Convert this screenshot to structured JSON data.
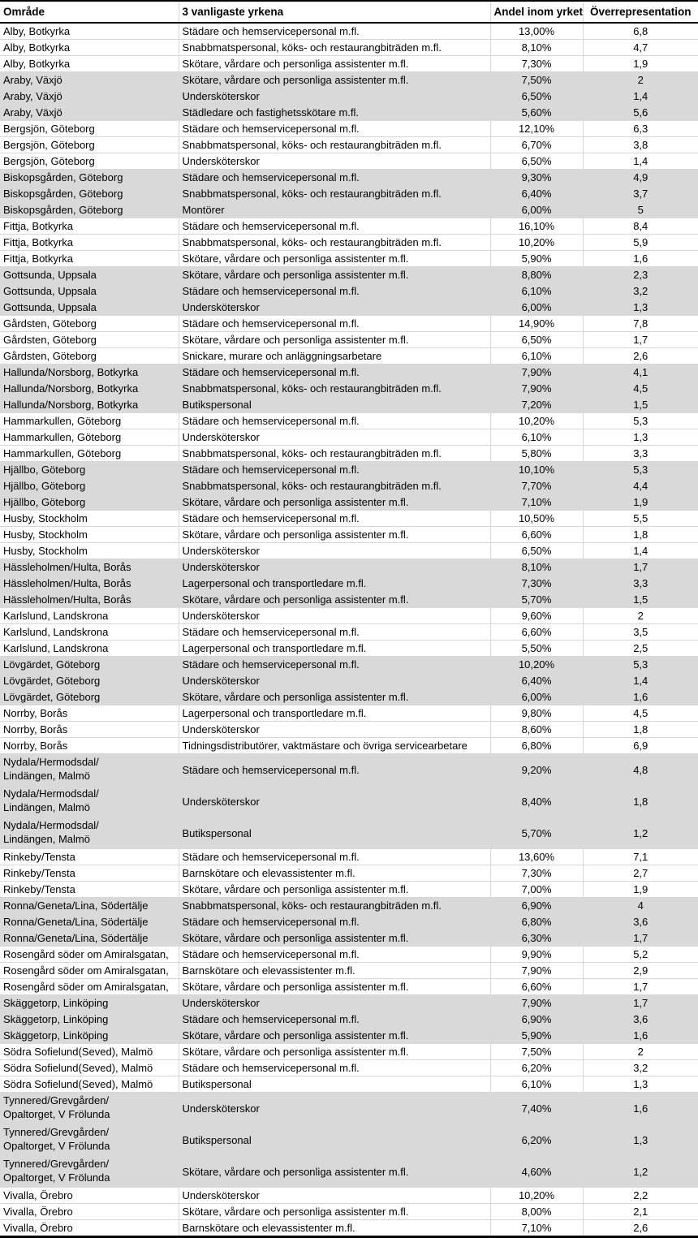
{
  "colors": {
    "row_shade": "#d9d9d9",
    "gridline": "#d6d6d6",
    "outer_border": "#000000",
    "text": "#000000",
    "background": "#ffffff"
  },
  "table": {
    "columns": [
      {
        "key": "area",
        "label": "Område"
      },
      {
        "key": "occupation",
        "label": "3 vanligaste yrkena"
      },
      {
        "key": "share",
        "label": "Andel inom yrket"
      },
      {
        "key": "over",
        "label": "Överrepresentation"
      }
    ],
    "rows": [
      {
        "area": "Alby, Botkyrka",
        "occupation": "Städare och hemservicepersonal m.fl.",
        "share": "13,00%",
        "over": "6,8",
        "shaded": false,
        "tall": false
      },
      {
        "area": "Alby, Botkyrka",
        "occupation": "Snabbmatspersonal, köks- och restaurangbiträden m.fl.",
        "share": "8,10%",
        "over": "4,7",
        "shaded": false,
        "tall": false
      },
      {
        "area": "Alby, Botkyrka",
        "occupation": "Skötare, vårdare och personliga assistenter m.fl.",
        "share": "7,30%",
        "over": "1,9",
        "shaded": false,
        "tall": false
      },
      {
        "area": "Araby, Växjö",
        "occupation": "Skötare, vårdare och personliga assistenter m.fl.",
        "share": "7,50%",
        "over": "2",
        "shaded": true,
        "tall": false
      },
      {
        "area": "Araby, Växjö",
        "occupation": "Undersköterskor",
        "share": "6,50%",
        "over": "1,4",
        "shaded": true,
        "tall": false
      },
      {
        "area": "Araby, Växjö",
        "occupation": "Städledare och fastighetsskötare m.fl.",
        "share": "5,60%",
        "over": "5,6",
        "shaded": true,
        "tall": false
      },
      {
        "area": "Bergsjön, Göteborg",
        "occupation": "Städare och hemservicepersonal m.fl.",
        "share": "12,10%",
        "over": "6,3",
        "shaded": false,
        "tall": false
      },
      {
        "area": "Bergsjön, Göteborg",
        "occupation": "Snabbmatspersonal, köks- och restaurangbiträden m.fl.",
        "share": "6,70%",
        "over": "3,8",
        "shaded": false,
        "tall": false
      },
      {
        "area": "Bergsjön, Göteborg",
        "occupation": "Undersköterskor",
        "share": "6,50%",
        "over": "1,4",
        "shaded": false,
        "tall": false
      },
      {
        "area": "Biskopsgården, Göteborg",
        "occupation": "Städare och hemservicepersonal m.fl.",
        "share": "9,30%",
        "over": "4,9",
        "shaded": true,
        "tall": false
      },
      {
        "area": "Biskopsgården, Göteborg",
        "occupation": "Snabbmatspersonal, köks- och restaurangbiträden m.fl.",
        "share": "6,40%",
        "over": "3,7",
        "shaded": true,
        "tall": false
      },
      {
        "area": "Biskopsgården, Göteborg",
        "occupation": "Montörer",
        "share": "6,00%",
        "over": "5",
        "shaded": true,
        "tall": false
      },
      {
        "area": "Fittja, Botkyrka",
        "occupation": "Städare och hemservicepersonal m.fl.",
        "share": "16,10%",
        "over": "8,4",
        "shaded": false,
        "tall": false
      },
      {
        "area": "Fittja, Botkyrka",
        "occupation": "Snabbmatspersonal, köks- och restaurangbiträden m.fl.",
        "share": "10,20%",
        "over": "5,9",
        "shaded": false,
        "tall": false
      },
      {
        "area": "Fittja, Botkyrka",
        "occupation": "Skötare, vårdare och personliga assistenter m.fl.",
        "share": "5,90%",
        "over": "1,6",
        "shaded": false,
        "tall": false
      },
      {
        "area": "Gottsunda, Uppsala",
        "occupation": "Skötare, vårdare och personliga assistenter m.fl.",
        "share": "8,80%",
        "over": "2,3",
        "shaded": true,
        "tall": false
      },
      {
        "area": "Gottsunda, Uppsala",
        "occupation": "Städare och hemservicepersonal m.fl.",
        "share": "6,10%",
        "over": "3,2",
        "shaded": true,
        "tall": false
      },
      {
        "area": "Gottsunda, Uppsala",
        "occupation": "Undersköterskor",
        "share": "6,00%",
        "over": "1,3",
        "shaded": true,
        "tall": false
      },
      {
        "area": "Gårdsten, Göteborg",
        "occupation": "Städare och hemservicepersonal m.fl.",
        "share": "14,90%",
        "over": "7,8",
        "shaded": false,
        "tall": false
      },
      {
        "area": "Gårdsten, Göteborg",
        "occupation": "Skötare, vårdare och personliga assistenter m.fl.",
        "share": "6,50%",
        "over": "1,7",
        "shaded": false,
        "tall": false
      },
      {
        "area": "Gårdsten, Göteborg",
        "occupation": "Snickare, murare och anläggningsarbetare",
        "share": "6,10%",
        "over": "2,6",
        "shaded": false,
        "tall": false
      },
      {
        "area": "Hallunda/Norsborg, Botkyrka",
        "occupation": "Städare och hemservicepersonal m.fl.",
        "share": "7,90%",
        "over": "4,1",
        "shaded": true,
        "tall": false
      },
      {
        "area": "Hallunda/Norsborg, Botkyrka",
        "occupation": "Snabbmatspersonal, köks- och restaurangbiträden m.fl.",
        "share": "7,90%",
        "over": "4,5",
        "shaded": true,
        "tall": false
      },
      {
        "area": "Hallunda/Norsborg, Botkyrka",
        "occupation": "Butikspersonal",
        "share": "7,20%",
        "over": "1,5",
        "shaded": true,
        "tall": false
      },
      {
        "area": "Hammarkullen, Göteborg",
        "occupation": "Städare och hemservicepersonal m.fl.",
        "share": "10,20%",
        "over": "5,3",
        "shaded": false,
        "tall": false
      },
      {
        "area": "Hammarkullen, Göteborg",
        "occupation": "Undersköterskor",
        "share": "6,10%",
        "over": "1,3",
        "shaded": false,
        "tall": false
      },
      {
        "area": "Hammarkullen, Göteborg",
        "occupation": "Snabbmatspersonal, köks- och restaurangbiträden m.fl.",
        "share": "5,80%",
        "over": "3,3",
        "shaded": false,
        "tall": false
      },
      {
        "area": "Hjällbo, Göteborg",
        "occupation": "Städare och hemservicepersonal m.fl.",
        "share": "10,10%",
        "over": "5,3",
        "shaded": true,
        "tall": false
      },
      {
        "area": "Hjällbo, Göteborg",
        "occupation": "Snabbmatspersonal, köks- och restaurangbiträden m.fl.",
        "share": "7,70%",
        "over": "4,4",
        "shaded": true,
        "tall": false
      },
      {
        "area": "Hjällbo, Göteborg",
        "occupation": "Skötare, vårdare och personliga assistenter m.fl.",
        "share": "7,10%",
        "over": "1,9",
        "shaded": true,
        "tall": false
      },
      {
        "area": "Husby, Stockholm",
        "occupation": "Städare och hemservicepersonal m.fl.",
        "share": "10,50%",
        "over": "5,5",
        "shaded": false,
        "tall": false
      },
      {
        "area": "Husby, Stockholm",
        "occupation": "Skötare, vårdare och personliga assistenter m.fl.",
        "share": "6,60%",
        "over": "1,8",
        "shaded": false,
        "tall": false
      },
      {
        "area": "Husby, Stockholm",
        "occupation": "Undersköterskor",
        "share": "6,50%",
        "over": "1,4",
        "shaded": false,
        "tall": false
      },
      {
        "area": "Hässleholmen/Hulta, Borås",
        "occupation": "Undersköterskor",
        "share": "8,10%",
        "over": "1,7",
        "shaded": true,
        "tall": false
      },
      {
        "area": "Hässleholmen/Hulta, Borås",
        "occupation": "Lagerpersonal och transportledare m.fl.",
        "share": "7,30%",
        "over": "3,3",
        "shaded": true,
        "tall": false
      },
      {
        "area": "Hässleholmen/Hulta, Borås",
        "occupation": "Skötare, vårdare och personliga assistenter m.fl.",
        "share": "5,70%",
        "over": "1,5",
        "shaded": true,
        "tall": false
      },
      {
        "area": "Karlslund, Landskrona",
        "occupation": "Undersköterskor",
        "share": "9,60%",
        "over": "2",
        "shaded": false,
        "tall": false
      },
      {
        "area": "Karlslund, Landskrona",
        "occupation": "Städare och hemservicepersonal m.fl.",
        "share": "6,60%",
        "over": "3,5",
        "shaded": false,
        "tall": false
      },
      {
        "area": "Karlslund, Landskrona",
        "occupation": "Lagerpersonal och transportledare m.fl.",
        "share": "5,50%",
        "over": "2,5",
        "shaded": false,
        "tall": false
      },
      {
        "area": "Lövgärdet, Göteborg",
        "occupation": "Städare och hemservicepersonal m.fl.",
        "share": "10,20%",
        "over": "5,3",
        "shaded": true,
        "tall": false
      },
      {
        "area": "Lövgärdet, Göteborg",
        "occupation": "Undersköterskor",
        "share": "6,40%",
        "over": "1,4",
        "shaded": true,
        "tall": false
      },
      {
        "area": "Lövgärdet, Göteborg",
        "occupation": "Skötare, vårdare och personliga assistenter m.fl.",
        "share": "6,00%",
        "over": "1,6",
        "shaded": true,
        "tall": false
      },
      {
        "area": "Norrby, Borås",
        "occupation": "Lagerpersonal och transportledare m.fl.",
        "share": "9,80%",
        "over": "4,5",
        "shaded": false,
        "tall": false
      },
      {
        "area": "Norrby, Borås",
        "occupation": "Undersköterskor",
        "share": "8,60%",
        "over": "1,8",
        "shaded": false,
        "tall": false
      },
      {
        "area": "Norrby, Borås",
        "occupation": "Tidningsdistributörer, vaktmästare och övriga servicearbetare",
        "share": "6,80%",
        "over": "6,9",
        "shaded": false,
        "tall": false
      },
      {
        "area": "Nydala/Hermodsdal/\nLindängen, Malmö",
        "occupation": "Städare och hemservicepersonal m.fl.",
        "share": "9,20%",
        "over": "4,8",
        "shaded": true,
        "tall": true
      },
      {
        "area": "Nydala/Hermodsdal/\nLindängen, Malmö",
        "occupation": "Undersköterskor",
        "share": "8,40%",
        "over": "1,8",
        "shaded": true,
        "tall": true
      },
      {
        "area": "Nydala/Hermodsdal/\nLindängen, Malmö",
        "occupation": "Butikspersonal",
        "share": "5,70%",
        "over": "1,2",
        "shaded": true,
        "tall": true
      },
      {
        "area": "Rinkeby/Tensta",
        "occupation": "Städare och hemservicepersonal m.fl.",
        "share": "13,60%",
        "over": "7,1",
        "shaded": false,
        "tall": false
      },
      {
        "area": "Rinkeby/Tensta",
        "occupation": "Barnskötare och elevassistenter m.fl.",
        "share": "7,30%",
        "over": "2,7",
        "shaded": false,
        "tall": false
      },
      {
        "area": "Rinkeby/Tensta",
        "occupation": "Skötare, vårdare och personliga assistenter m.fl.",
        "share": "7,00%",
        "over": "1,9",
        "shaded": false,
        "tall": false
      },
      {
        "area": "Ronna/Geneta/Lina, Södertälje",
        "occupation": "Snabbmatspersonal, köks- och restaurangbiträden m.fl.",
        "share": "6,90%",
        "over": "4",
        "shaded": true,
        "tall": false
      },
      {
        "area": "Ronna/Geneta/Lina, Södertälje",
        "occupation": "Städare och hemservicepersonal m.fl.",
        "share": "6,80%",
        "over": "3,6",
        "shaded": true,
        "tall": false
      },
      {
        "area": "Ronna/Geneta/Lina, Södertälje",
        "occupation": "Skötare, vårdare och personliga assistenter m.fl.",
        "share": "6,30%",
        "over": "1,7",
        "shaded": true,
        "tall": false
      },
      {
        "area": "Rosengård söder om Amiralsgatan,",
        "occupation": "Städare och hemservicepersonal m.fl.",
        "share": "9,90%",
        "over": "5,2",
        "shaded": false,
        "tall": false
      },
      {
        "area": "Rosengård söder om Amiralsgatan,",
        "occupation": "Barnskötare och elevassistenter m.fl.",
        "share": "7,90%",
        "over": "2,9",
        "shaded": false,
        "tall": false
      },
      {
        "area": "Rosengård söder om Amiralsgatan,",
        "occupation": "Skötare, vårdare och personliga assistenter m.fl.",
        "share": "6,60%",
        "over": "1,7",
        "shaded": false,
        "tall": false
      },
      {
        "area": "Skäggetorp, Linköping",
        "occupation": "Undersköterskor",
        "share": "7,90%",
        "over": "1,7",
        "shaded": true,
        "tall": false
      },
      {
        "area": "Skäggetorp, Linköping",
        "occupation": "Städare och hemservicepersonal m.fl.",
        "share": "6,90%",
        "over": "3,6",
        "shaded": true,
        "tall": false
      },
      {
        "area": "Skäggetorp, Linköping",
        "occupation": "Skötare, vårdare och personliga assistenter m.fl.",
        "share": "5,90%",
        "over": "1,6",
        "shaded": true,
        "tall": false
      },
      {
        "area": "Södra Sofielund(Seved), Malmö",
        "occupation": "Skötare, vårdare och personliga assistenter m.fl.",
        "share": "7,50%",
        "over": "2",
        "shaded": false,
        "tall": false
      },
      {
        "area": "Södra Sofielund(Seved), Malmö",
        "occupation": "Städare och hemservicepersonal m.fl.",
        "share": "6,20%",
        "over": "3,2",
        "shaded": false,
        "tall": false
      },
      {
        "area": "Södra Sofielund(Seved), Malmö",
        "occupation": "Butikspersonal",
        "share": "6,10%",
        "over": "1,3",
        "shaded": false,
        "tall": false
      },
      {
        "area": "Tynnered/Grevgården/\nOpaltorget, V Frölunda",
        "occupation": "Undersköterskor",
        "share": "7,40%",
        "over": "1,6",
        "shaded": true,
        "tall": true
      },
      {
        "area": "Tynnered/Grevgården/\nOpaltorget, V Frölunda",
        "occupation": "Butikspersonal",
        "share": "6,20%",
        "over": "1,3",
        "shaded": true,
        "tall": true
      },
      {
        "area": "Tynnered/Grevgården/\nOpaltorget, V Frölunda",
        "occupation": "Skötare, vårdare och personliga assistenter m.fl.",
        "share": "4,60%",
        "over": "1,2",
        "shaded": true,
        "tall": true
      },
      {
        "area": "Vivalla, Örebro",
        "occupation": "Undersköterskor",
        "share": "10,20%",
        "over": "2,2",
        "shaded": false,
        "tall": false
      },
      {
        "area": "Vivalla, Örebro",
        "occupation": "Skötare, vårdare och personliga assistenter m.fl.",
        "share": "8,00%",
        "over": "2,1",
        "shaded": false,
        "tall": false
      },
      {
        "area": "Vivalla, Örebro",
        "occupation": "Barnskötare och elevassistenter m.fl.",
        "share": "7,10%",
        "over": "2,6",
        "shaded": false,
        "tall": false
      }
    ]
  }
}
